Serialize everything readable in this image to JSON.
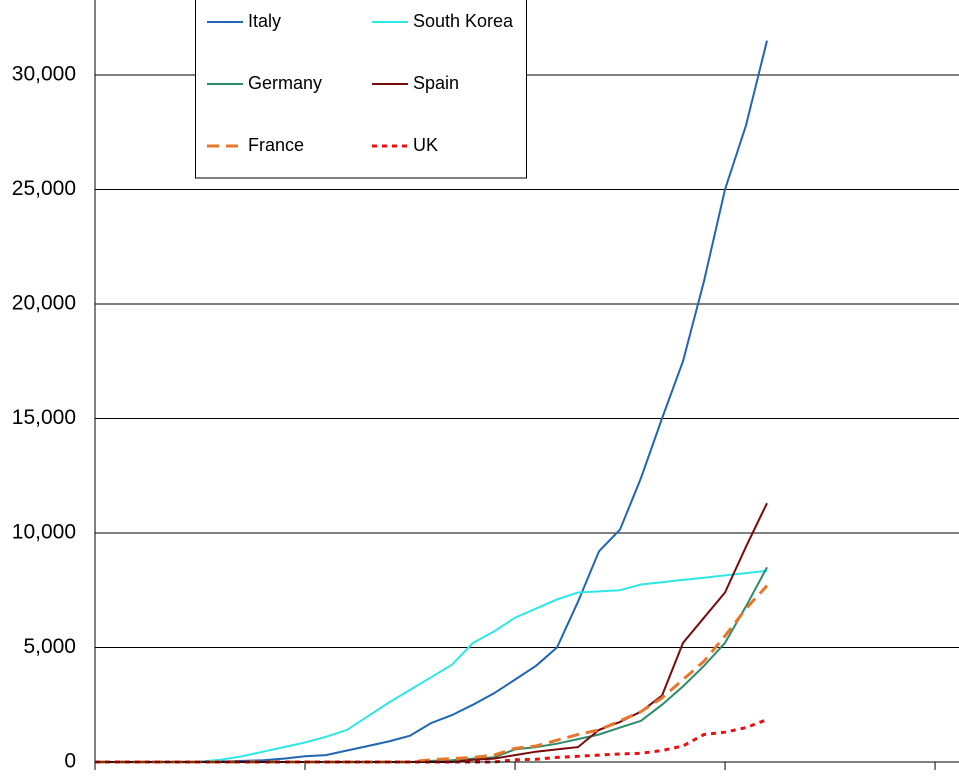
{
  "chart_data": {
    "type": "line",
    "x": [
      0,
      1,
      2,
      3,
      4,
      5,
      6,
      7,
      8,
      9,
      10,
      11,
      12,
      13,
      14,
      15,
      16,
      17,
      18,
      19,
      20,
      21,
      22,
      23,
      24,
      25,
      26,
      27,
      28,
      29,
      30,
      31,
      32
    ],
    "xlim": [
      0,
      41.14
    ],
    "xticks": [
      0,
      10,
      20,
      30,
      40
    ],
    "ylim": [
      0,
      33275
    ],
    "yticks": [
      0,
      {
        "value": 5000,
        "label": "5,000"
      },
      {
        "value": 10000,
        "label": "10,000"
      },
      {
        "value": 15000,
        "label": "15,000"
      },
      {
        "value": 20000,
        "label": "20,000"
      },
      {
        "value": 25000,
        "label": "25,000"
      },
      {
        "value": 30000,
        "label": "30,000"
      }
    ],
    "grid": true,
    "legend": "top-left",
    "series": [
      {
        "name": "Italy",
        "color": "#1f66b3",
        "style": "solid",
        "values": [
          0,
          0,
          0,
          0,
          0,
          5,
          20,
          50,
          80,
          150,
          250,
          300,
          500,
          700,
          900,
          1150,
          1700,
          2050,
          2500,
          3000,
          3600,
          4200,
          5000,
          7000,
          9200,
          10150,
          12400,
          15000,
          17500,
          21000,
          25000,
          27800,
          31500
        ]
      },
      {
        "name": "South Korea",
        "color": "#2ee6e6",
        "style": "solid",
        "values": [
          0,
          0,
          0,
          0,
          0,
          20,
          100,
          250,
          450,
          650,
          850,
          1100,
          1400,
          2000,
          2600,
          3150,
          3700,
          4250,
          5200,
          5700,
          6300,
          6700,
          7100,
          7400,
          7450,
          7500,
          7750,
          7850,
          7950,
          8050,
          8150,
          8250,
          8350
        ]
      },
      {
        "name": "Germany",
        "color": "#2e8b6a",
        "style": "solid",
        "values": [
          0,
          0,
          0,
          0,
          0,
          0,
          0,
          0,
          0,
          0,
          0,
          0,
          0,
          0,
          0,
          0,
          50,
          80,
          150,
          200,
          550,
          650,
          800,
          1000,
          1200,
          1500,
          1800,
          2500,
          3300,
          4200,
          5200,
          6800,
          8500
        ]
      },
      {
        "name": "Spain",
        "color": "#7a0a0a",
        "style": "solid",
        "values": [
          0,
          0,
          0,
          0,
          0,
          0,
          0,
          0,
          0,
          0,
          0,
          0,
          0,
          0,
          0,
          0,
          0,
          0,
          100,
          150,
          300,
          450,
          550,
          650,
          1400,
          1750,
          2200,
          2900,
          5200,
          6300,
          7400,
          9400,
          11300
        ]
      },
      {
        "name": "France",
        "color": "#e8762a",
        "style": "dashed",
        "values": [
          0,
          0,
          0,
          0,
          0,
          0,
          0,
          0,
          0,
          0,
          0,
          0,
          0,
          0,
          0,
          0,
          100,
          150,
          200,
          300,
          600,
          700,
          950,
          1200,
          1400,
          1800,
          2200,
          2800,
          3600,
          4400,
          5500,
          6700,
          7700
        ]
      },
      {
        "name": "UK",
        "color": "#e81010",
        "style": "dotted",
        "values": [
          0,
          0,
          0,
          0,
          0,
          0,
          0,
          0,
          0,
          0,
          0,
          0,
          0,
          0,
          0,
          0,
          0,
          0,
          0,
          0,
          100,
          120,
          200,
          250,
          300,
          350,
          380,
          500,
          700,
          1200,
          1300,
          1500,
          1850
        ]
      }
    ]
  }
}
